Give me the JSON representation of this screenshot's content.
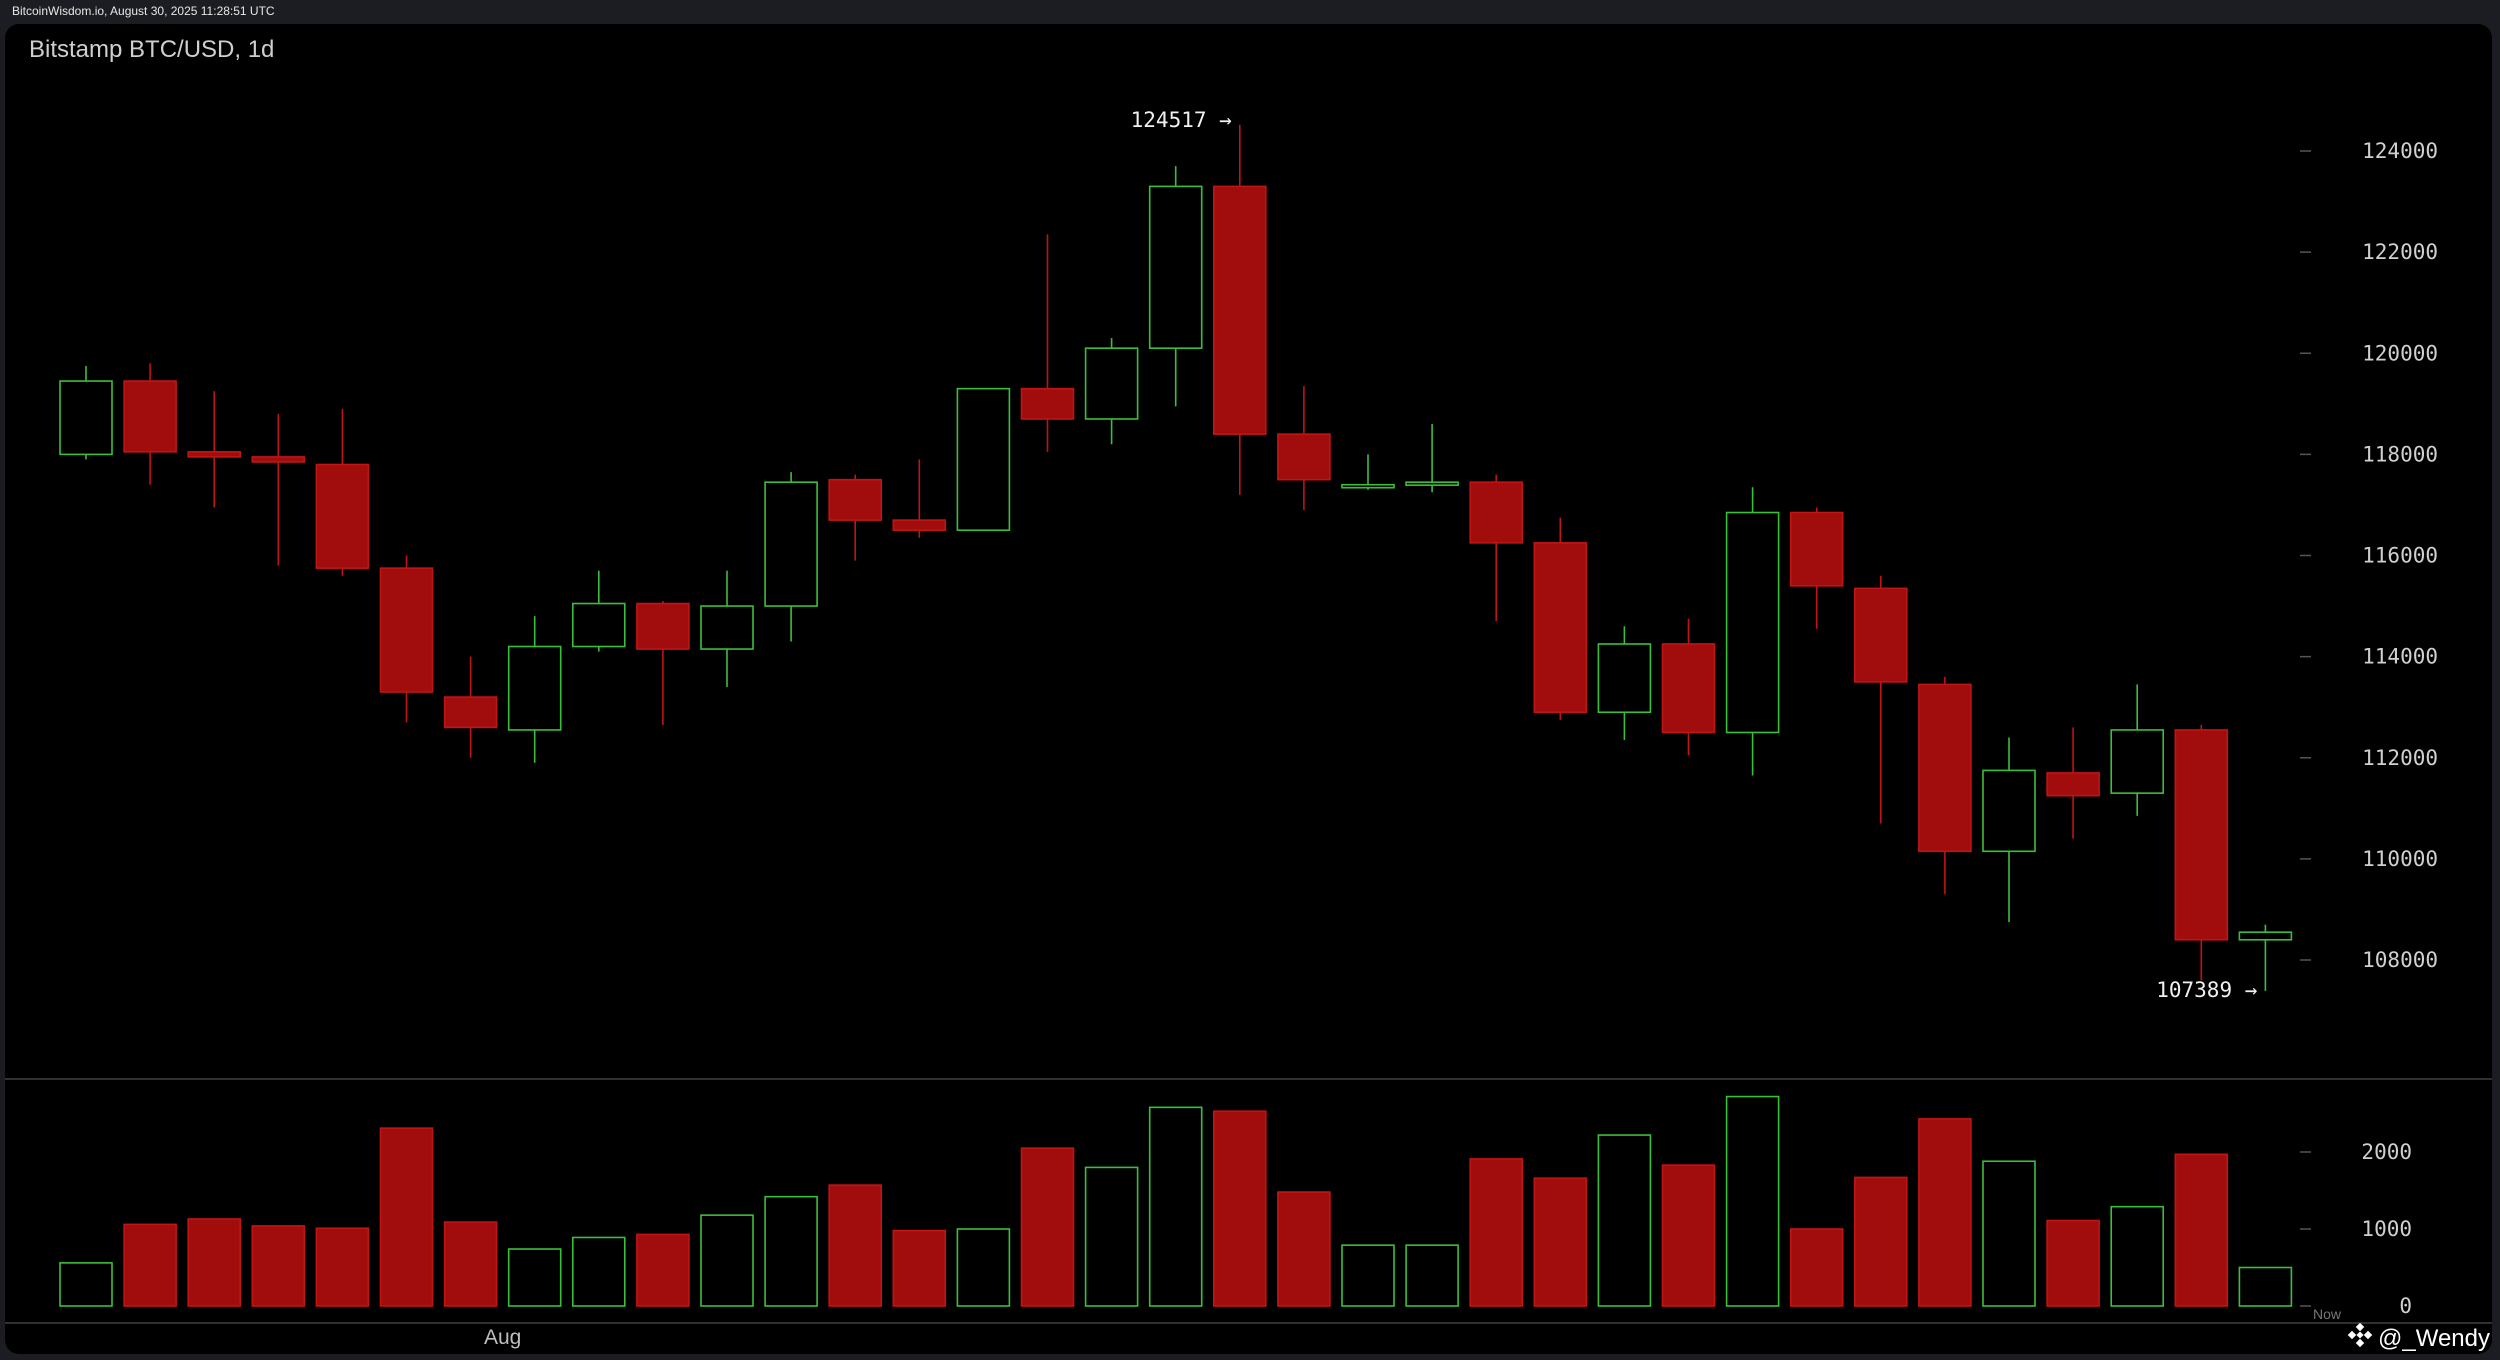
{
  "header": {
    "site": "BitcoinWisdom.io, August 30, 2025 11:28:51 UTC"
  },
  "chart_title": "Bitstamp BTC/USD, 1d",
  "watermark": {
    "text": "@_Wendy",
    "sub": "Now",
    "icon": "binance-diamond-icon"
  },
  "colors": {
    "up": "#3bbf3b",
    "down": "#a10d0d",
    "down_edge": "#c01515",
    "axis_line": "#404040",
    "background": "#000000"
  },
  "chart_data": [
    {
      "type": "candlestick",
      "title": "Bitstamp BTC/USD, 1d",
      "yticks": [
        108000,
        110000,
        112000,
        114000,
        116000,
        118000,
        120000,
        122000,
        124000
      ],
      "ylim": [
        106000,
        125500
      ],
      "xticks": [
        {
          "index": 6.5,
          "label": "Aug"
        }
      ],
      "annotations": [
        {
          "label": "124517 →",
          "value": 124517,
          "index": 18
        },
        {
          "label": "107389 →",
          "value": 107389,
          "index": 34
        }
      ],
      "candles": [
        {
          "o": 118000,
          "h": 119750,
          "l": 117900,
          "c": 119450
        },
        {
          "o": 119450,
          "h": 119800,
          "l": 117400,
          "c": 118050
        },
        {
          "o": 118050,
          "h": 119250,
          "l": 116950,
          "c": 117950
        },
        {
          "o": 117950,
          "h": 118800,
          "l": 115800,
          "c": 117850
        },
        {
          "o": 117800,
          "h": 118900,
          "l": 115600,
          "c": 115750
        },
        {
          "o": 115750,
          "h": 116000,
          "l": 112700,
          "c": 113300
        },
        {
          "o": 113200,
          "h": 114000,
          "l": 112000,
          "c": 112600
        },
        {
          "o": 112550,
          "h": 114800,
          "l": 111900,
          "c": 114200
        },
        {
          "o": 114200,
          "h": 115700,
          "l": 114100,
          "c": 115050
        },
        {
          "o": 115050,
          "h": 115100,
          "l": 112650,
          "c": 114150
        },
        {
          "o": 114150,
          "h": 115700,
          "l": 113400,
          "c": 115000
        },
        {
          "o": 115000,
          "h": 117650,
          "l": 114300,
          "c": 117450
        },
        {
          "o": 117500,
          "h": 117600,
          "l": 115900,
          "c": 116700
        },
        {
          "o": 116700,
          "h": 117900,
          "l": 116350,
          "c": 116500
        },
        {
          "o": 116500,
          "h": 119300,
          "l": 116500,
          "c": 119300
        },
        {
          "o": 119300,
          "h": 122350,
          "l": 118050,
          "c": 118700
        },
        {
          "o": 118700,
          "h": 120300,
          "l": 118200,
          "c": 120100
        },
        {
          "o": 120100,
          "h": 123700,
          "l": 118950,
          "c": 123300
        },
        {
          "o": 123300,
          "h": 124517,
          "l": 117200,
          "c": 118400
        },
        {
          "o": 118400,
          "h": 119350,
          "l": 116900,
          "c": 117500
        },
        {
          "o": 117400,
          "h": 118000,
          "l": 117300,
          "c": 117400
        },
        {
          "o": 117450,
          "h": 118600,
          "l": 117250,
          "c": 117450
        },
        {
          "o": 117450,
          "h": 117600,
          "l": 114700,
          "c": 116250
        },
        {
          "o": 116250,
          "h": 116750,
          "l": 112750,
          "c": 112900
        },
        {
          "o": 112900,
          "h": 114600,
          "l": 112350,
          "c": 114250
        },
        {
          "o": 114250,
          "h": 114750,
          "l": 112050,
          "c": 112500
        },
        {
          "o": 112500,
          "h": 117350,
          "l": 111650,
          "c": 116850
        },
        {
          "o": 116850,
          "h": 116950,
          "l": 114550,
          "c": 115400
        },
        {
          "o": 115350,
          "h": 115600,
          "l": 110700,
          "c": 113500
        },
        {
          "o": 113450,
          "h": 113600,
          "l": 109300,
          "c": 110150
        },
        {
          "o": 110150,
          "h": 112400,
          "l": 108750,
          "c": 111750
        },
        {
          "o": 111700,
          "h": 112600,
          "l": 110400,
          "c": 111250
        },
        {
          "o": 111300,
          "h": 113450,
          "l": 110850,
          "c": 112550
        },
        {
          "o": 112550,
          "h": 112650,
          "l": 107600,
          "c": 108400
        },
        {
          "o": 108400,
          "h": 108700,
          "l": 107389,
          "c": 108550
        }
      ]
    },
    {
      "type": "bar",
      "title": "",
      "yticks": [
        0,
        1000,
        2000
      ],
      "ylim": [
        0,
        2960
      ],
      "values": [
        560,
        1060,
        1130,
        1040,
        1010,
        2310,
        1090,
        740,
        890,
        930,
        1180,
        1420,
        1570,
        980,
        1000,
        2050,
        1800,
        2580,
        2530,
        1480,
        790,
        790,
        1910,
        1660,
        2220,
        1830,
        2720,
        1000,
        1670,
        2430,
        1880,
        1110,
        1290,
        1970,
        500
      ]
    }
  ]
}
